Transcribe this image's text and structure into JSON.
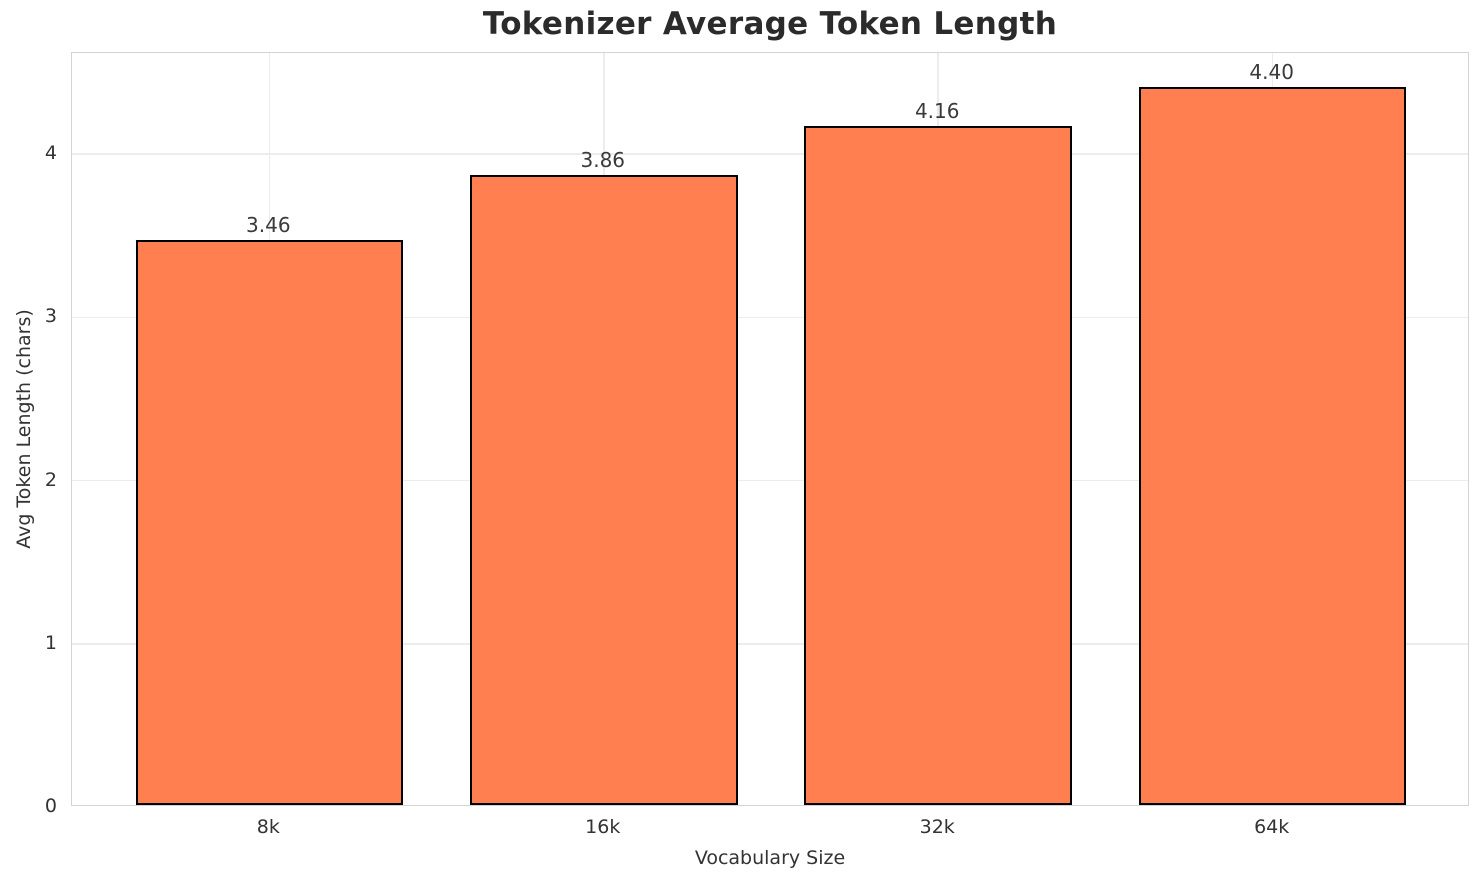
{
  "chart_data": {
    "type": "bar",
    "title": "Tokenizer Average Token Length",
    "xlabel": "Vocabulary Size",
    "ylabel": "Avg Token Length (chars)",
    "categories": [
      "8k",
      "16k",
      "32k",
      "64k"
    ],
    "values": [
      3.46,
      3.86,
      4.16,
      4.4
    ],
    "value_labels": [
      "3.46",
      "3.86",
      "4.16",
      "4.40"
    ],
    "yticks": [
      0,
      1,
      2,
      3,
      4
    ],
    "ylim": [
      0,
      4.62
    ],
    "xlim": [
      -0.59,
      3.59
    ],
    "bar_width_units": 0.8,
    "grid": "both",
    "legend": "none",
    "colors": {
      "bar_fill": "#FF7F50",
      "bar_edge": "#000000",
      "spine": "#d4d4d4",
      "grid": "#ececec",
      "title_text": "#2b2b2b",
      "tick_text": "#333333",
      "value_text": "#3a3a3a",
      "background": "#ffffff"
    }
  }
}
